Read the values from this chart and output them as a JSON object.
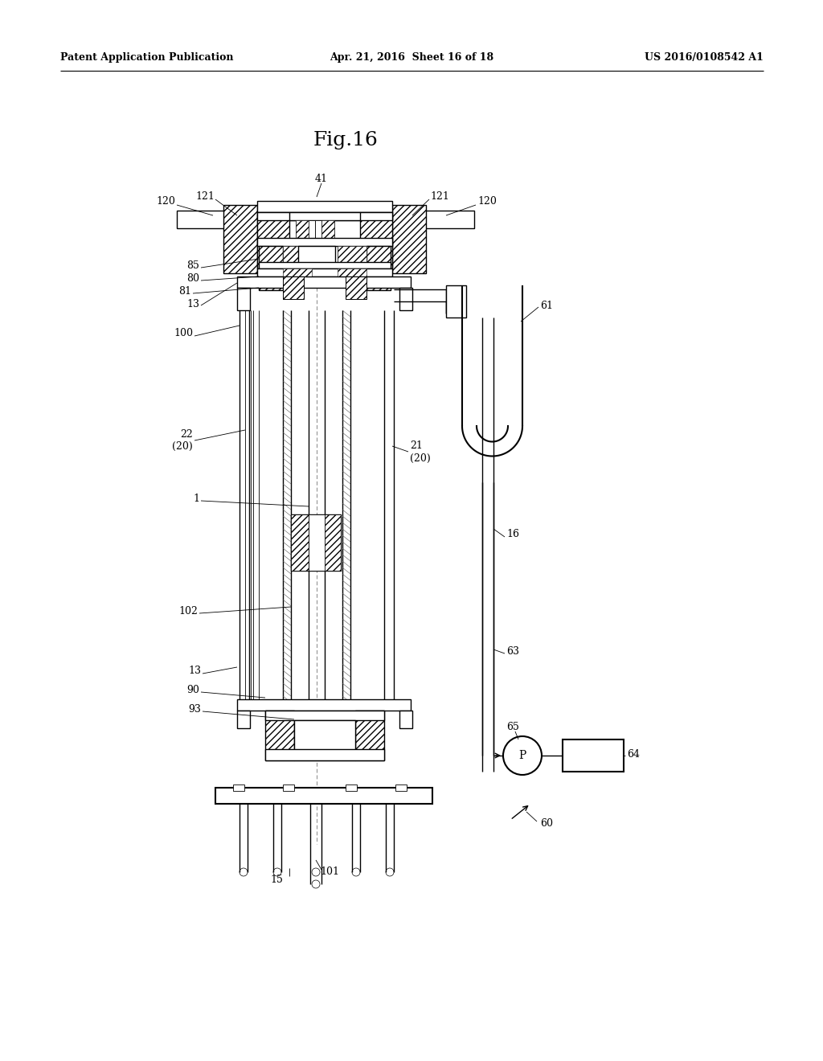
{
  "bg_color": "#ffffff",
  "header_left": "Patent Application Publication",
  "header_mid": "Apr. 21, 2016  Sheet 16 of 18",
  "header_right": "US 2016/0108542 A1",
  "fig_title": "Fig.16"
}
